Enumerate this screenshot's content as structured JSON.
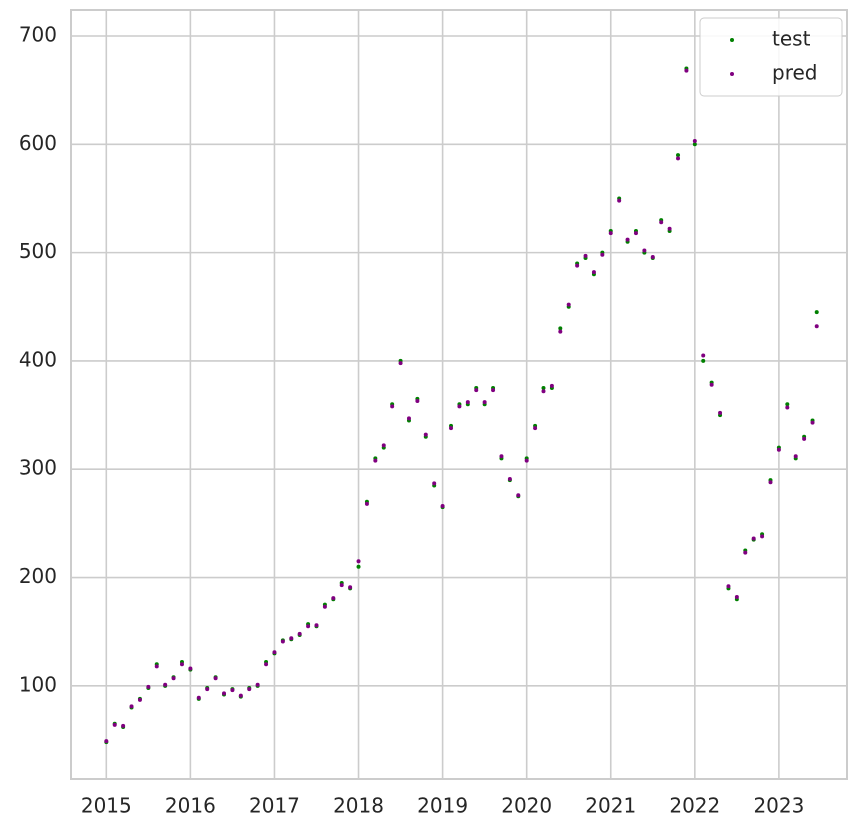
{
  "chart_data": {
    "type": "scatter",
    "x": [
      2015.0,
      2015.1,
      2015.2,
      2015.3,
      2015.4,
      2015.5,
      2015.6,
      2015.7,
      2015.8,
      2015.9,
      2016.0,
      2016.1,
      2016.2,
      2016.3,
      2016.4,
      2016.5,
      2016.6,
      2016.7,
      2016.8,
      2016.9,
      2017.0,
      2017.1,
      2017.2,
      2017.3,
      2017.4,
      2017.5,
      2017.6,
      2017.7,
      2017.8,
      2017.9,
      2018.0,
      2018.1,
      2018.2,
      2018.3,
      2018.4,
      2018.5,
      2018.6,
      2018.7,
      2018.8,
      2018.9,
      2019.0,
      2019.1,
      2019.2,
      2019.3,
      2019.4,
      2019.5,
      2019.6,
      2019.7,
      2019.8,
      2019.9,
      2020.0,
      2020.1,
      2020.2,
      2020.3,
      2020.4,
      2020.5,
      2020.6,
      2020.7,
      2020.8,
      2020.9,
      2021.0,
      2021.1,
      2021.2,
      2021.3,
      2021.4,
      2021.5,
      2021.6,
      2021.7,
      2021.8,
      2021.9,
      2022.0,
      2022.1,
      2022.2,
      2022.3,
      2022.4,
      2022.5,
      2022.6,
      2022.7,
      2022.8,
      2022.9,
      2023.0,
      2023.1,
      2023.2,
      2023.3,
      2023.4,
      2023.45
    ],
    "series": [
      {
        "name": "test",
        "color": "#008000",
        "values": [
          48,
          65,
          62,
          80,
          88,
          98,
          120,
          100,
          108,
          122,
          115,
          88,
          98,
          108,
          92,
          97,
          90,
          98,
          100,
          122,
          130,
          142,
          143,
          147,
          157,
          155,
          175,
          180,
          195,
          190,
          210,
          270,
          310,
          320,
          360,
          400,
          345,
          365,
          330,
          285,
          265,
          340,
          360,
          360,
          375,
          360,
          375,
          310,
          290,
          275,
          310,
          340,
          375,
          375,
          430,
          450,
          490,
          495,
          480,
          500,
          520,
          550,
          510,
          520,
          500,
          495,
          530,
          520,
          590,
          670,
          600,
          400,
          380,
          350,
          190,
          180,
          225,
          235,
          240,
          290,
          320,
          360,
          310,
          330,
          345,
          445
        ]
      },
      {
        "name": "pred",
        "color": "#800080",
        "values": [
          49,
          64,
          63,
          81,
          87,
          99,
          118,
          101,
          107,
          120,
          116,
          89,
          97,
          107,
          93,
          96,
          91,
          97,
          101,
          120,
          131,
          141,
          144,
          148,
          155,
          156,
          173,
          181,
          193,
          191,
          215,
          268,
          308,
          322,
          358,
          398,
          347,
          363,
          332,
          287,
          266,
          338,
          358,
          362,
          373,
          362,
          373,
          312,
          291,
          276,
          308,
          338,
          372,
          377,
          427,
          452,
          488,
          497,
          482,
          498,
          518,
          548,
          512,
          518,
          502,
          496,
          528,
          522,
          587,
          668,
          603,
          405,
          378,
          352,
          192,
          182,
          223,
          236,
          238,
          288,
          318,
          357,
          312,
          328,
          343,
          432
        ]
      }
    ],
    "xlim": [
      2014.58,
      2023.81
    ],
    "xticks": [
      2015,
      2016,
      2017,
      2018,
      2019,
      2020,
      2021,
      2022,
      2023
    ],
    "ylim": [
      14,
      724
    ],
    "yticks": [
      100,
      200,
      300,
      400,
      500,
      600,
      700
    ],
    "grid": true,
    "legend": "upper right"
  }
}
